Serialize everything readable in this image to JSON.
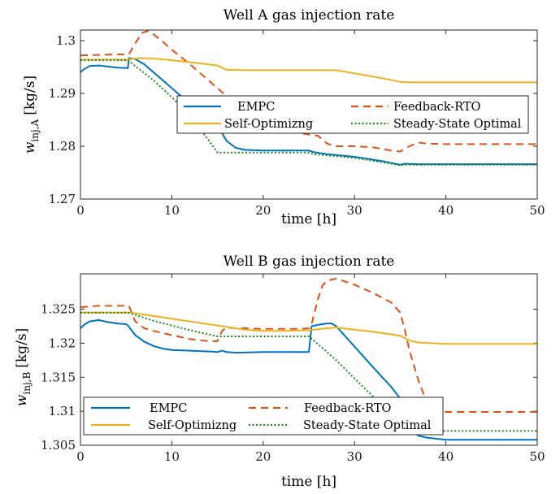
{
  "figure": {
    "colors": {
      "empc": "#0072BD",
      "feedback_rto": "#D95319",
      "self_optimizing": "#EDB120",
      "steady_state": "#1A8A1A",
      "axis": "#262626",
      "background": "#ffffff"
    }
  },
  "chart_data": [
    {
      "type": "line",
      "title": "Well A gas injection rate",
      "xlabel": "time [h]",
      "ylabel_main": "w",
      "ylabel_sub": "inj,A",
      "ylabel_unit": "[kg/s]",
      "xlim": [
        0,
        50
      ],
      "ylim": [
        1.27,
        1.302
      ],
      "xticks": [
        0,
        10,
        20,
        30,
        40,
        50
      ],
      "xtick_labels": [
        "0",
        "10",
        "20",
        "30",
        "40",
        "50"
      ],
      "yticks": [
        1.27,
        1.28,
        1.29,
        1.3
      ],
      "ytick_labels": [
        "1.27",
        "1.28",
        "1.29",
        "1.3"
      ],
      "grid": false,
      "legend_position": "center-right",
      "legend_entries": [
        "EMPC",
        "Feedback-RTO",
        "Self-Optimizng",
        "Steady-State Optimal"
      ],
      "series": [
        {
          "name": "EMPC",
          "style": "solid",
          "color_key": "empc",
          "x": [
            0,
            0.3,
            1,
            2,
            3,
            4,
            5,
            5.2,
            5.3,
            6,
            7,
            8,
            9,
            10,
            11,
            12,
            13,
            14,
            15,
            15.5,
            16,
            17,
            18,
            20,
            22,
            24,
            25,
            25.5,
            27,
            30,
            33,
            35,
            35.5,
            37,
            40,
            45,
            50
          ],
          "y": [
            1.294,
            1.2945,
            1.2952,
            1.2953,
            1.2951,
            1.2949,
            1.2948,
            1.2948,
            1.2967,
            1.2965,
            1.2955,
            1.294,
            1.2925,
            1.291,
            1.2895,
            1.288,
            1.2865,
            1.285,
            1.2836,
            1.2825,
            1.281,
            1.2797,
            1.2793,
            1.2792,
            1.2792,
            1.2792,
            1.2792,
            1.2789,
            1.2785,
            1.278,
            1.2772,
            1.2765,
            1.2767,
            1.2766,
            1.2766,
            1.2766,
            1.2766
          ]
        },
        {
          "name": "Feedback-RTO",
          "style": "dashed",
          "color_key": "feedback_rto",
          "x": [
            0,
            2,
            4,
            5.3,
            6,
            6.8,
            7.3,
            8,
            9,
            10,
            12,
            14,
            15,
            16,
            18,
            20,
            22,
            24,
            25,
            26,
            27,
            28,
            30,
            32,
            33,
            34,
            35,
            36,
            37,
            38,
            40,
            45,
            50
          ],
          "y": [
            1.2972,
            1.2973,
            1.2974,
            1.2974,
            1.2995,
            1.3015,
            1.3018,
            1.3012,
            1.2998,
            1.2983,
            1.2955,
            1.2925,
            1.291,
            1.2895,
            1.2868,
            1.2845,
            1.2832,
            1.2825,
            1.2822,
            1.282,
            1.2805,
            1.28,
            1.28,
            1.2798,
            1.2795,
            1.2792,
            1.279,
            1.28,
            1.2807,
            1.2805,
            1.2804,
            1.2804,
            1.2804
          ]
        },
        {
          "name": "Self-Optimizng",
          "style": "solid",
          "color_key": "self_optimizing",
          "x": [
            0,
            2,
            4,
            5.2,
            6,
            7,
            8,
            10,
            12,
            14,
            15,
            16,
            18,
            20,
            25,
            28,
            30,
            33,
            35,
            36,
            37,
            40,
            45,
            50
          ],
          "y": [
            1.2964,
            1.2964,
            1.2964,
            1.2964,
            1.2966,
            1.2967,
            1.2966,
            1.2963,
            1.2959,
            1.2955,
            1.2953,
            1.2945,
            1.2944,
            1.2944,
            1.2944,
            1.2944,
            1.2938,
            1.2929,
            1.2922,
            1.2921,
            1.2921,
            1.2921,
            1.2921,
            1.2921
          ]
        },
        {
          "name": "Steady-State Optimal",
          "style": "dotted",
          "color_key": "steady_state",
          "x": [
            0,
            2,
            4,
            5.2,
            6,
            8,
            10,
            12,
            14,
            15,
            15.1,
            20,
            25,
            25.5,
            30,
            35,
            35.5,
            40,
            50
          ],
          "y": [
            1.2963,
            1.2963,
            1.2963,
            1.2963,
            1.2952,
            1.2925,
            1.2893,
            1.2857,
            1.2812,
            1.2788,
            1.2788,
            1.2788,
            1.2788,
            1.2785,
            1.2778,
            1.2764,
            1.2765,
            1.2765,
            1.2765
          ]
        }
      ]
    },
    {
      "type": "line",
      "title": "Well B gas injection rate",
      "xlabel": "time [h]",
      "ylabel_main": "w",
      "ylabel_sub": "inj,B",
      "ylabel_unit": "[kg/s]",
      "xlim": [
        0,
        50
      ],
      "ylim": [
        1.305,
        1.3302
      ],
      "xticks": [
        0,
        10,
        20,
        30,
        40,
        50
      ],
      "xtick_labels": [
        "0",
        "10",
        "20",
        "30",
        "40",
        "50"
      ],
      "yticks": [
        1.305,
        1.31,
        1.315,
        1.32,
        1.325
      ],
      "ytick_labels": [
        "1.305",
        "1.31",
        "1.315",
        "1.32",
        "1.325"
      ],
      "grid": false,
      "legend_position": "bottom",
      "legend_entries": [
        "EMPC",
        "Feedback-RTO",
        "Self-Optimizng",
        "Steady-State Optimal"
      ],
      "series": [
        {
          "name": "EMPC",
          "style": "solid",
          "color_key": "empc",
          "x": [
            0,
            0.5,
            1,
            2,
            3,
            4,
            5,
            5.2,
            6,
            7,
            8,
            9,
            10,
            12,
            14,
            15,
            15.5,
            16,
            17,
            20,
            22,
            25,
            25.3,
            26,
            27,
            27.5,
            28,
            30,
            32,
            34,
            35.5,
            36,
            37,
            38,
            40,
            45,
            50
          ],
          "y": [
            1.3222,
            1.3228,
            1.3232,
            1.3234,
            1.3231,
            1.3229,
            1.3228,
            1.3226,
            1.3212,
            1.3202,
            1.3196,
            1.3192,
            1.319,
            1.3189,
            1.3188,
            1.3187,
            1.3189,
            1.3187,
            1.3186,
            1.3187,
            1.3187,
            1.3187,
            1.3225,
            1.3227,
            1.3229,
            1.3229,
            1.3225,
            1.3195,
            1.3165,
            1.3136,
            1.311,
            1.3075,
            1.3064,
            1.3061,
            1.3058,
            1.3058,
            1.3058
          ]
        },
        {
          "name": "Feedback-RTO",
          "style": "dashed",
          "color_key": "feedback_rto",
          "x": [
            0,
            2,
            4,
            5.3,
            6,
            7,
            8,
            10,
            12,
            14,
            15,
            15.5,
            16,
            17,
            18,
            20,
            22,
            24,
            25,
            25.3,
            26,
            26.5,
            27,
            28,
            30,
            32,
            34,
            35,
            35.5,
            36,
            37,
            38,
            40,
            45,
            50
          ],
          "y": [
            1.3253,
            1.3255,
            1.3255,
            1.3255,
            1.3232,
            1.3222,
            1.3218,
            1.3212,
            1.3206,
            1.3203,
            1.3203,
            1.3218,
            1.3223,
            1.3222,
            1.3222,
            1.3221,
            1.3221,
            1.3221,
            1.3222,
            1.3228,
            1.3265,
            1.3285,
            1.3292,
            1.3295,
            1.3286,
            1.3274,
            1.326,
            1.3245,
            1.322,
            1.319,
            1.3145,
            1.311,
            1.3099,
            1.3099,
            1.3099
          ]
        },
        {
          "name": "Self-Optimizng",
          "style": "solid",
          "color_key": "self_optimizing",
          "x": [
            0,
            2,
            4,
            5.5,
            8,
            10,
            12,
            15,
            18,
            20,
            22,
            25,
            27,
            28,
            30,
            32,
            34,
            35,
            36,
            37,
            40,
            45,
            50
          ],
          "y": [
            1.3245,
            1.3245,
            1.3245,
            1.3245,
            1.324,
            1.3236,
            1.3232,
            1.3226,
            1.322,
            1.3218,
            1.3218,
            1.3219,
            1.3222,
            1.3223,
            1.322,
            1.3217,
            1.3213,
            1.3211,
            1.3204,
            1.3201,
            1.3199,
            1.3199,
            1.3199
          ]
        },
        {
          "name": "Steady-State Optimal",
          "style": "dotted",
          "color_key": "steady_state",
          "x": [
            0,
            2,
            4,
            5.2,
            8,
            10,
            12,
            15,
            20,
            25,
            25.2,
            28,
            30,
            32,
            34,
            35.5,
            36,
            38,
            40,
            45,
            50
          ],
          "y": [
            1.3245,
            1.3245,
            1.3245,
            1.3245,
            1.3233,
            1.3226,
            1.3219,
            1.321,
            1.321,
            1.321,
            1.3208,
            1.3175,
            1.3148,
            1.3122,
            1.3095,
            1.308,
            1.3075,
            1.3071,
            1.3071,
            1.3071,
            1.3071
          ]
        }
      ]
    }
  ]
}
